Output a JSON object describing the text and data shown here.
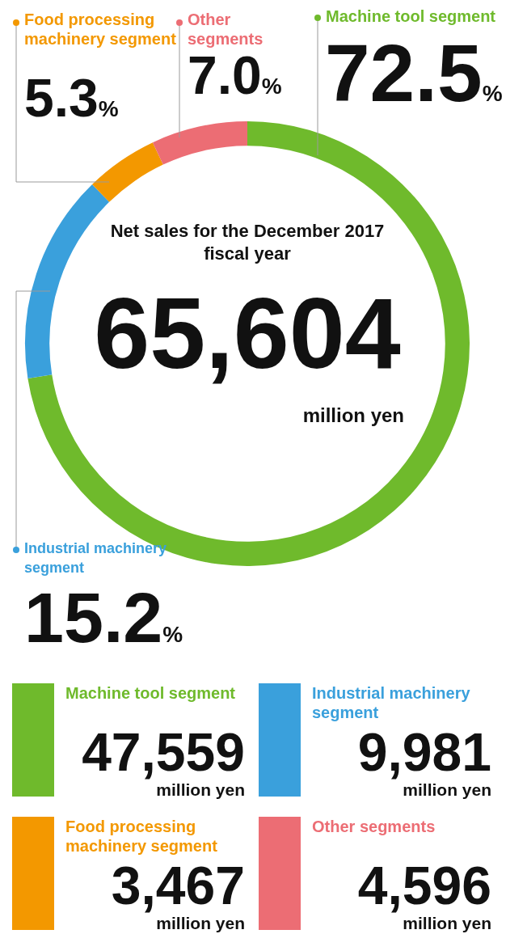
{
  "chart_data": [
    {
      "type": "donut",
      "title": "Net sales for the December 2017 fiscal year",
      "categories": [
        "Machine tool segment",
        "Industrial machinery segment",
        "Food processing machinery segment",
        "Other segments"
      ],
      "values": [
        72.5,
        15.2,
        5.3,
        7.0
      ],
      "colors": [
        "#6fba2c",
        "#3aa0dc",
        "#f39800",
        "#ec6d74"
      ],
      "value_labels": [
        "72.5%",
        "15.2%",
        "5.3%",
        "7.0%"
      ],
      "annotations": [
        "65,604",
        "million yen"
      ],
      "legend": "top"
    },
    {
      "type": "other",
      "categories": [
        "Machine tool segment",
        "Industrial machinery segment",
        "Food processing machinery segment",
        "Other segments"
      ],
      "values": [
        47559,
        9981,
        3467,
        4596
      ],
      "value_labels": [
        "47,559",
        "9,981",
        "3,467",
        "4,596"
      ],
      "colors": [
        "#6fba2c",
        "#3aa0dc",
        "#f39800",
        "#ec6d74"
      ],
      "annotations": [
        "million yen"
      ]
    }
  ]
}
